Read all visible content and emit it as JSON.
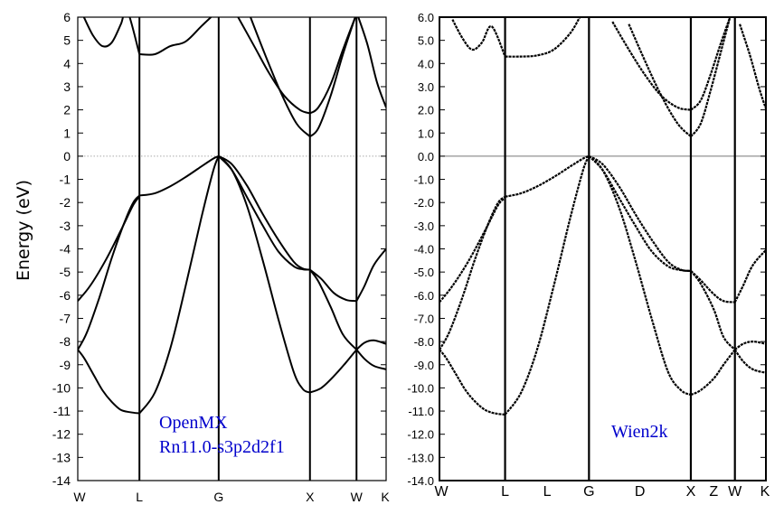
{
  "ylabel": "Energy (eV)",
  "colors": {
    "annotation": "#0000cc",
    "zero_left": "#aaaaaa",
    "zero_right": "#777777"
  },
  "chart_data": [
    {
      "type": "line",
      "panel": "left",
      "annotation": [
        "OpenMX",
        "Rn11.0-s3p2d2f1"
      ],
      "ylim": [
        -14,
        6
      ],
      "yticks": [
        6,
        5,
        4,
        3,
        2,
        1,
        0,
        -1,
        -2,
        -3,
        -4,
        -5,
        -6,
        -7,
        -8,
        -9,
        -10,
        -11,
        -12,
        -13,
        -14
      ],
      "ytick_labels": [
        "6",
        "5",
        "4",
        "3",
        "2",
        "1",
        "0",
        "-1",
        "-2",
        "-3",
        "-4",
        "-5",
        "-6",
        "-7",
        "-8",
        "-9",
        "-10",
        "-11",
        "-12",
        "-13",
        "-14"
      ],
      "kpoints": [
        {
          "label": "W",
          "pos": 0
        },
        {
          "label": "L",
          "pos": 0.2
        },
        {
          "label": "G",
          "pos": 0.457
        },
        {
          "label": "X",
          "pos": 0.753
        },
        {
          "label": "W",
          "pos": 0.904
        },
        {
          "label": "K",
          "pos": 1
        }
      ],
      "zero_line": "dotted",
      "series": [
        {
          "x": [
            0,
            0.02,
            0.05,
            0.08,
            0.11,
            0.14,
            0.17,
            0.2
          ],
          "y": [
            -8.35,
            -8.7,
            -9.4,
            -10.1,
            -10.6,
            -10.95,
            -11.05,
            -11.1
          ]
        },
        {
          "x": [
            0.2,
            0.25,
            0.3,
            0.35,
            0.4,
            0.44,
            0.457
          ],
          "y": [
            -11.1,
            -10.2,
            -8.3,
            -5.6,
            -2.7,
            -0.6,
            0
          ]
        },
        {
          "x": [
            0.457,
            0.5,
            0.55,
            0.6,
            0.65,
            0.7,
            0.73,
            0.753
          ],
          "y": [
            0,
            -0.6,
            -2.2,
            -4.5,
            -7,
            -9.3,
            -10.05,
            -10.2
          ]
        },
        {
          "x": [
            0.753,
            0.79,
            0.83,
            0.87,
            0.904
          ],
          "y": [
            -10.2,
            -10,
            -9.5,
            -8.9,
            -8.35
          ]
        },
        {
          "x": [
            0.904,
            0.93,
            0.96,
            1.0
          ],
          "y": [
            -8.35,
            -8.75,
            -9.05,
            -9.2
          ]
        },
        {
          "x": [
            0,
            0.03,
            0.07,
            0.11,
            0.15,
            0.18,
            0.2
          ],
          "y": [
            -8.35,
            -7.6,
            -6.1,
            -4.4,
            -2.9,
            -2.0,
            -1.7
          ]
        },
        {
          "x": [
            0.2,
            0.25,
            0.3,
            0.35,
            0.4,
            0.44,
            0.457
          ],
          "y": [
            -1.7,
            -1.6,
            -1.3,
            -0.9,
            -0.45,
            -0.1,
            0
          ]
        },
        {
          "x": [
            0.457,
            0.5,
            0.55,
            0.6,
            0.65,
            0.7,
            0.73,
            0.753
          ],
          "y": [
            0,
            -0.35,
            -1.3,
            -2.5,
            -3.6,
            -4.55,
            -4.85,
            -4.9
          ]
        },
        {
          "x": [
            0.753,
            0.79,
            0.83,
            0.87,
            0.904
          ],
          "y": [
            -4.9,
            -5.3,
            -5.9,
            -6.2,
            -6.25
          ]
        },
        {
          "x": [
            0.904,
            0.93,
            0.96,
            1.0
          ],
          "y": [
            -6.25,
            -5.6,
            -4.7,
            -4.0
          ]
        },
        {
          "x": [
            0,
            0.04,
            0.09,
            0.14,
            0.18,
            0.2
          ],
          "y": [
            -6.25,
            -5.6,
            -4.5,
            -3.2,
            -2.1,
            -1.75
          ]
        },
        {
          "x": [
            0.457,
            0.5,
            0.55,
            0.6,
            0.65,
            0.7,
            0.73,
            0.753
          ],
          "y": [
            0,
            -0.6,
            -1.8,
            -3.0,
            -4.1,
            -4.75,
            -4.88,
            -4.9
          ]
        },
        {
          "x": [
            0.753,
            0.78,
            0.82,
            0.86,
            0.904
          ],
          "y": [
            -4.9,
            -5.4,
            -6.5,
            -7.7,
            -8.35
          ]
        },
        {
          "x": [
            0.904,
            0.93,
            0.96,
            1.0
          ],
          "y": [
            -8.35,
            -8.05,
            -7.95,
            -8.1
          ]
        },
        {
          "x": [
            0.02,
            0.05,
            0.08,
            0.11,
            0.14,
            0.16,
            0.2
          ],
          "y": [
            6,
            5.2,
            4.75,
            4.9,
            5.7,
            6.3,
            4.4
          ]
        },
        {
          "x": [
            0.2,
            0.25,
            0.3,
            0.35,
            0.4,
            0.44
          ],
          "y": [
            4.4,
            4.4,
            4.75,
            4.95,
            5.6,
            6.1
          ]
        },
        {
          "x": [
            0.52,
            0.57,
            0.62,
            0.67,
            0.72,
            0.753
          ],
          "y": [
            6,
            4.8,
            3.6,
            2.6,
            2.0,
            1.85
          ]
        },
        {
          "x": [
            0.753,
            0.78,
            0.82,
            0.86,
            0.9
          ],
          "y": [
            1.85,
            2.1,
            3.1,
            4.6,
            6.0
          ]
        },
        {
          "x": [
            0.56,
            0.61,
            0.66,
            0.71,
            0.753
          ],
          "y": [
            6,
            4.3,
            2.7,
            1.4,
            0.85
          ]
        },
        {
          "x": [
            0.753,
            0.78,
            0.82,
            0.86,
            0.9
          ],
          "y": [
            0.85,
            1.2,
            2.6,
            4.4,
            6.0
          ]
        },
        {
          "x": [
            0.91,
            0.94,
            0.97,
            1.0
          ],
          "y": [
            6,
            4.8,
            3.2,
            2.1
          ]
        }
      ]
    },
    {
      "type": "line",
      "panel": "right",
      "annotation": [
        "Wien2k"
      ],
      "ylim": [
        -14,
        6
      ],
      "yticks": [
        6,
        5,
        4,
        3,
        2,
        1,
        0,
        -1,
        -2,
        -3,
        -4,
        -5,
        -6,
        -7,
        -8,
        -9,
        -10,
        -11,
        -12,
        -13,
        -14
      ],
      "ytick_labels": [
        "6.0",
        "5.0",
        "4.0",
        "3.0",
        "2.0",
        "1.0",
        "0.0",
        "-1.0",
        "-2.0",
        "-3.0",
        "-4.0",
        "-5.0",
        "-6.0",
        "-7.0",
        "-8.0",
        "-9.0",
        "-10.0",
        "-11.0",
        "-12.0",
        "-13.0",
        "-14.0"
      ],
      "kpoints": [
        {
          "label": "W",
          "pos": 0
        },
        {
          "label": "L",
          "pos": 0.201
        },
        {
          "label": "L",
          "pos": 0.33,
          "line": false
        },
        {
          "label": "G",
          "pos": 0.458
        },
        {
          "label": "D",
          "pos": 0.614,
          "line": false
        },
        {
          "label": "X",
          "pos": 0.77
        },
        {
          "label": "Z",
          "pos": 0.84,
          "line": false
        },
        {
          "label": "W",
          "pos": 0.905
        },
        {
          "label": "K",
          "pos": 1
        }
      ],
      "zero_line": "solid",
      "series": [
        {
          "x": [
            0,
            0.02,
            0.05,
            0.08,
            0.11,
            0.14,
            0.17,
            0.201
          ],
          "y": [
            -8.35,
            -8.7,
            -9.4,
            -10.1,
            -10.6,
            -10.95,
            -11.1,
            -11.15
          ]
        },
        {
          "x": [
            0.201,
            0.25,
            0.3,
            0.35,
            0.4,
            0.44,
            0.458
          ],
          "y": [
            -11.15,
            -10.2,
            -8.3,
            -5.6,
            -2.7,
            -0.6,
            0
          ]
        },
        {
          "x": [
            0.458,
            0.5,
            0.55,
            0.6,
            0.65,
            0.7,
            0.74,
            0.77
          ],
          "y": [
            0,
            -0.6,
            -2.2,
            -4.5,
            -7,
            -9.3,
            -10.1,
            -10.3
          ]
        },
        {
          "x": [
            0.77,
            0.8,
            0.84,
            0.87,
            0.905
          ],
          "y": [
            -10.3,
            -10.1,
            -9.6,
            -9.0,
            -8.35
          ]
        },
        {
          "x": [
            0.905,
            0.93,
            0.96,
            1.0
          ],
          "y": [
            -8.35,
            -8.85,
            -9.2,
            -9.35
          ]
        },
        {
          "x": [
            0,
            0.03,
            0.07,
            0.11,
            0.15,
            0.18,
            0.201
          ],
          "y": [
            -8.35,
            -7.6,
            -6.1,
            -4.4,
            -2.9,
            -2.0,
            -1.75
          ]
        },
        {
          "x": [
            0.201,
            0.25,
            0.3,
            0.35,
            0.4,
            0.44,
            0.458
          ],
          "y": [
            -1.75,
            -1.6,
            -1.3,
            -0.9,
            -0.45,
            -0.1,
            0
          ]
        },
        {
          "x": [
            0.458,
            0.5,
            0.55,
            0.6,
            0.65,
            0.7,
            0.74,
            0.77
          ],
          "y": [
            0,
            -0.35,
            -1.3,
            -2.5,
            -3.6,
            -4.55,
            -4.9,
            -4.95
          ]
        },
        {
          "x": [
            0.77,
            0.8,
            0.84,
            0.87,
            0.905
          ],
          "y": [
            -4.95,
            -5.35,
            -5.95,
            -6.25,
            -6.3
          ]
        },
        {
          "x": [
            0.905,
            0.93,
            0.96,
            1.0
          ],
          "y": [
            -6.3,
            -5.6,
            -4.7,
            -4.05
          ]
        },
        {
          "x": [
            0,
            0.04,
            0.09,
            0.14,
            0.18,
            0.201
          ],
          "y": [
            -6.3,
            -5.6,
            -4.5,
            -3.2,
            -2.1,
            -1.8
          ]
        },
        {
          "x": [
            0.458,
            0.5,
            0.55,
            0.6,
            0.65,
            0.7,
            0.74,
            0.77
          ],
          "y": [
            0,
            -0.6,
            -1.8,
            -3.0,
            -4.1,
            -4.75,
            -4.92,
            -4.95
          ]
        },
        {
          "x": [
            0.77,
            0.8,
            0.84,
            0.87,
            0.905
          ],
          "y": [
            -4.95,
            -5.5,
            -6.6,
            -7.8,
            -8.35
          ]
        },
        {
          "x": [
            0.905,
            0.93,
            0.96,
            1.0
          ],
          "y": [
            -8.35,
            -8.1,
            -8.0,
            -8.1
          ]
        },
        {
          "x": [
            0.04,
            0.07,
            0.1,
            0.13,
            0.16,
            0.201
          ],
          "y": [
            5.9,
            5.1,
            4.6,
            4.9,
            5.6,
            4.3
          ]
        },
        {
          "x": [
            0.201,
            0.25,
            0.3,
            0.35,
            0.4,
            0.43
          ],
          "y": [
            4.3,
            4.3,
            4.35,
            4.6,
            5.3,
            6.0
          ]
        },
        {
          "x": [
            0.53,
            0.58,
            0.63,
            0.68,
            0.73,
            0.77
          ],
          "y": [
            5.8,
            4.6,
            3.5,
            2.6,
            2.1,
            2.0
          ]
        },
        {
          "x": [
            0.77,
            0.8,
            0.83,
            0.86,
            0.89
          ],
          "y": [
            2.0,
            2.4,
            3.5,
            4.8,
            6.0
          ]
        },
        {
          "x": [
            0.58,
            0.63,
            0.68,
            0.73,
            0.77
          ],
          "y": [
            5.7,
            4.1,
            2.6,
            1.4,
            0.85
          ]
        },
        {
          "x": [
            0.77,
            0.8,
            0.83,
            0.86,
            0.89
          ],
          "y": [
            0.85,
            1.4,
            2.8,
            4.4,
            6.0
          ]
        },
        {
          "x": [
            0.92,
            0.95,
            0.98,
            1.0
          ],
          "y": [
            5.7,
            4.4,
            2.9,
            2.05
          ]
        }
      ]
    }
  ]
}
